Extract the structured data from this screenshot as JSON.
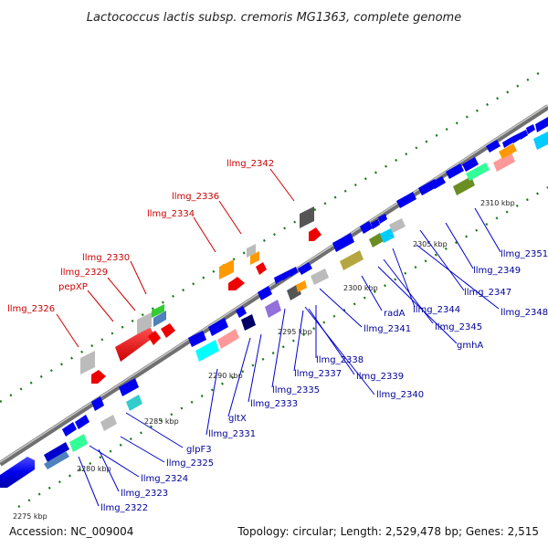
{
  "title": "Lactococcus lactis subsp. cremoris MG1363, complete genome",
  "footer": {
    "accession": "Accession: NC_009004",
    "summary": "Topology: circular; Length: 2,529,478 bp; Genes: 2,515"
  },
  "ticks": [
    "2275 kbp",
    "2280 kbp",
    "2285 kbp",
    "2290 kbp",
    "2295 kbp",
    "2300 kbp",
    "2305 kbp",
    "2310 kbp"
  ],
  "labels_top": [
    "llmg_2342",
    "llmg_2336",
    "llmg_2334",
    "llmg_2330",
    "llmg_2329",
    "pepXP",
    "llmg_2326"
  ],
  "labels_bottom": [
    "llmg_2351",
    "llmg_2349",
    "llmg_2347",
    "llmg_2348",
    "llmg_2344",
    "llmg_2345",
    "gmhA",
    "radA",
    "llmg_2341",
    "llmg_2338",
    "llmg_2339",
    "llmg_2337",
    "llmg_2340",
    "llmg_2335",
    "llmg_2333",
    "gltX",
    "llmg_2331",
    "glpF3",
    "llmg_2325",
    "llmg_2324",
    "llmg_2323",
    "llmg_2322"
  ],
  "colors": {
    "label_red": "#cc0000",
    "label_blue": "#000099",
    "backbone": "#888888",
    "tick_green": "#1a7a1a"
  }
}
